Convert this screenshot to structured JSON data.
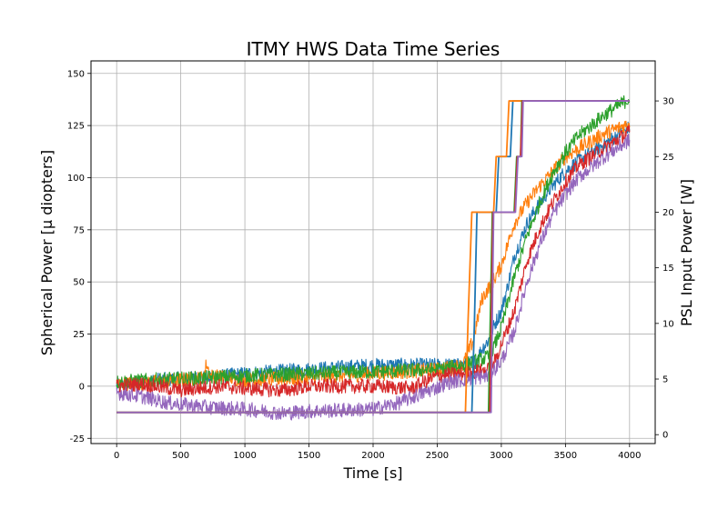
{
  "chart_data": {
    "type": "line",
    "title": "ITMY HWS Data Time Series",
    "xlabel": "Time [s]",
    "ylabel": "Spherical Power [μ diopters]",
    "ylabel_right": "PSL Input Power [W]",
    "xlim": [
      -200,
      4200
    ],
    "ylim": [
      -27.5,
      156
    ],
    "ylim_right": [
      -0.8,
      33.6
    ],
    "xticks": [
      0,
      500,
      1000,
      1500,
      2000,
      2500,
      3000,
      3500,
      4000
    ],
    "yticks": [
      -25,
      0,
      25,
      50,
      75,
      100,
      125,
      150
    ],
    "yticks_right": [
      0,
      5,
      10,
      15,
      20,
      25,
      30
    ],
    "grid": true,
    "legend": "none",
    "colors": [
      "#1f77b4",
      "#ff7f0e",
      "#2ca02c",
      "#d62728",
      "#9467bd"
    ],
    "series": [
      {
        "axis": "left",
        "color": "#1f77b4",
        "noise": 1.6,
        "points": [
          [
            0,
            0
          ],
          [
            300,
            3
          ],
          [
            700,
            4
          ],
          [
            1000,
            6
          ],
          [
            1500,
            8
          ],
          [
            2000,
            10
          ],
          [
            2500,
            10
          ],
          [
            2700,
            10
          ],
          [
            2800,
            12
          ],
          [
            2850,
            18
          ],
          [
            2900,
            22
          ],
          [
            2950,
            30
          ],
          [
            3000,
            36
          ],
          [
            3050,
            48
          ],
          [
            3100,
            62
          ],
          [
            3200,
            78
          ],
          [
            3300,
            88
          ],
          [
            3400,
            96
          ],
          [
            3500,
            103
          ],
          [
            3600,
            108
          ],
          [
            3800,
            116
          ],
          [
            4000,
            124
          ]
        ]
      },
      {
        "axis": "left",
        "color": "#ff7f0e",
        "noise": 1.6,
        "points": [
          [
            0,
            1
          ],
          [
            300,
            2
          ],
          [
            680,
            4
          ],
          [
            700,
            11
          ],
          [
            730,
            5
          ],
          [
            1000,
            3
          ],
          [
            1500,
            4
          ],
          [
            2000,
            6
          ],
          [
            2500,
            8
          ],
          [
            2700,
            10
          ],
          [
            2780,
            22
          ],
          [
            2850,
            42
          ],
          [
            2950,
            52
          ],
          [
            3000,
            58
          ],
          [
            3050,
            68
          ],
          [
            3100,
            78
          ],
          [
            3200,
            88
          ],
          [
            3300,
            96
          ],
          [
            3400,
            103
          ],
          [
            3500,
            110
          ],
          [
            3600,
            114
          ],
          [
            3800,
            121
          ],
          [
            4000,
            126
          ]
        ]
      },
      {
        "axis": "left",
        "color": "#2ca02c",
        "noise": 1.6,
        "points": [
          [
            0,
            2
          ],
          [
            300,
            3
          ],
          [
            700,
            4
          ],
          [
            1000,
            5
          ],
          [
            1500,
            6
          ],
          [
            2000,
            7
          ],
          [
            2500,
            8
          ],
          [
            2700,
            10
          ],
          [
            2900,
            14
          ],
          [
            2950,
            20
          ],
          [
            3000,
            28
          ],
          [
            3050,
            40
          ],
          [
            3100,
            52
          ],
          [
            3150,
            62
          ],
          [
            3200,
            72
          ],
          [
            3300,
            88
          ],
          [
            3400,
            102
          ],
          [
            3500,
            112
          ],
          [
            3600,
            120
          ],
          [
            3800,
            130
          ],
          [
            3950,
            136
          ],
          [
            4000,
            138
          ]
        ]
      },
      {
        "axis": "left",
        "color": "#d62728",
        "noise": 1.6,
        "points": [
          [
            0,
            0
          ],
          [
            200,
            1
          ],
          [
            500,
            -2
          ],
          [
            800,
            0
          ],
          [
            1000,
            -1
          ],
          [
            1300,
            -2
          ],
          [
            1500,
            0
          ],
          [
            2000,
            0
          ],
          [
            2300,
            -1
          ],
          [
            2500,
            5
          ],
          [
            2700,
            6
          ],
          [
            2900,
            8
          ],
          [
            2950,
            12
          ],
          [
            3000,
            20
          ],
          [
            3100,
            36
          ],
          [
            3150,
            48
          ],
          [
            3200,
            60
          ],
          [
            3300,
            76
          ],
          [
            3400,
            88
          ],
          [
            3500,
            98
          ],
          [
            3600,
            106
          ],
          [
            3800,
            114
          ],
          [
            4000,
            122
          ]
        ]
      },
      {
        "axis": "left",
        "color": "#9467bd",
        "noise": 1.6,
        "points": [
          [
            0,
            -3
          ],
          [
            200,
            -5
          ],
          [
            400,
            -8
          ],
          [
            700,
            -10
          ],
          [
            1000,
            -11
          ],
          [
            1300,
            -13
          ],
          [
            1500,
            -12
          ],
          [
            2000,
            -11
          ],
          [
            2200,
            -8
          ],
          [
            2400,
            -3
          ],
          [
            2600,
            2
          ],
          [
            2800,
            4
          ],
          [
            2900,
            5
          ],
          [
            3000,
            12
          ],
          [
            3100,
            26
          ],
          [
            3150,
            38
          ],
          [
            3200,
            50
          ],
          [
            3300,
            68
          ],
          [
            3400,
            82
          ],
          [
            3500,
            92
          ],
          [
            3600,
            100
          ],
          [
            3800,
            110
          ],
          [
            4000,
            118
          ]
        ]
      },
      {
        "axis": "right",
        "color": "#1f77b4",
        "noise": 0,
        "points": [
          [
            0,
            2
          ],
          [
            2770,
            2
          ],
          [
            2790,
            10
          ],
          [
            2810,
            20
          ],
          [
            2960,
            20
          ],
          [
            2980,
            25
          ],
          [
            3070,
            25
          ],
          [
            3090,
            30
          ],
          [
            4000,
            30
          ]
        ]
      },
      {
        "axis": "right",
        "color": "#ff7f0e",
        "noise": 0,
        "points": [
          [
            0,
            2
          ],
          [
            2720,
            2
          ],
          [
            2740,
            10
          ],
          [
            2770,
            20
          ],
          [
            2940,
            20
          ],
          [
            2960,
            25
          ],
          [
            3040,
            25
          ],
          [
            3060,
            30
          ],
          [
            4000,
            30
          ]
        ]
      },
      {
        "axis": "right",
        "color": "#2ca02c",
        "noise": 0,
        "points": [
          [
            0,
            2
          ],
          [
            2900,
            2
          ],
          [
            2930,
            20
          ],
          [
            3100,
            20
          ],
          [
            3120,
            25
          ],
          [
            3150,
            25
          ],
          [
            3160,
            30
          ],
          [
            4000,
            30
          ]
        ]
      },
      {
        "axis": "right",
        "color": "#d62728",
        "noise": 0,
        "points": [
          [
            0,
            2
          ],
          [
            2910,
            2
          ],
          [
            2935,
            20
          ],
          [
            3105,
            20
          ],
          [
            3125,
            25
          ],
          [
            3150,
            25
          ],
          [
            3165,
            30
          ],
          [
            4000,
            30
          ]
        ]
      },
      {
        "axis": "right",
        "color": "#9467bd",
        "noise": 0,
        "points": [
          [
            0,
            2
          ],
          [
            2920,
            2
          ],
          [
            2940,
            20
          ],
          [
            3110,
            20
          ],
          [
            3130,
            25
          ],
          [
            3160,
            25
          ],
          [
            3170,
            30
          ],
          [
            4000,
            30
          ]
        ]
      }
    ]
  }
}
